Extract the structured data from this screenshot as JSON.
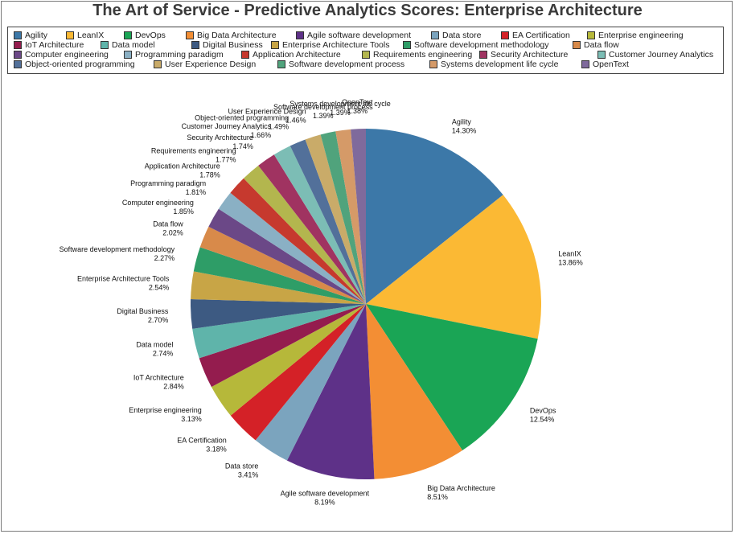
{
  "chart_data": {
    "type": "pie",
    "title": "The Art of Service - Predictive Analytics Scores: Enterprise Architecture",
    "legend_position": "top",
    "slices": [
      {
        "label": "Agility",
        "value": 14.3,
        "value_text": "14.30%",
        "color": "#3c78a8"
      },
      {
        "label": "LeanIX",
        "value": 13.86,
        "value_text": "13.86%",
        "color": "#fbb934"
      },
      {
        "label": "DevOps",
        "value": 12.54,
        "value_text": "12.54%",
        "color": "#1aa555"
      },
      {
        "label": "Big Data Architecture",
        "value": 8.51,
        "value_text": "8.51%",
        "color": "#f38e34"
      },
      {
        "label": "Agile software development",
        "value": 8.19,
        "value_text": "8.19%",
        "color": "#5e3188"
      },
      {
        "label": "Data store",
        "value": 3.41,
        "value_text": "3.41%",
        "color": "#7ba4be"
      },
      {
        "label": "EA Certification",
        "value": 3.18,
        "value_text": "3.18%",
        "color": "#d42127"
      },
      {
        "label": "Enterprise engineering",
        "value": 3.13,
        "value_text": "3.13%",
        "color": "#b6b83a"
      },
      {
        "label": "IoT Architecture",
        "value": 2.84,
        "value_text": "2.84%",
        "color": "#941c4e"
      },
      {
        "label": "Data model",
        "value": 2.74,
        "value_text": "2.74%",
        "color": "#5fb4aa"
      },
      {
        "label": "Digital Business",
        "value": 2.7,
        "value_text": "2.70%",
        "color": "#3d5a82"
      },
      {
        "label": "Enterprise Architecture Tools",
        "value": 2.54,
        "value_text": "2.54%",
        "color": "#c8a546"
      },
      {
        "label": "Software development methodology",
        "value": 2.27,
        "value_text": "2.27%",
        "color": "#2e9d67"
      },
      {
        "label": "Data flow",
        "value": 2.02,
        "value_text": "2.02%",
        "color": "#d88a4a"
      },
      {
        "label": "Computer engineering",
        "value": 1.85,
        "value_text": "1.85%",
        "color": "#6b4887"
      },
      {
        "label": "Programming paradigm",
        "value": 1.81,
        "value_text": "1.81%",
        "color": "#8ab0c4"
      },
      {
        "label": "Application Architecture",
        "value": 1.78,
        "value_text": "1.78%",
        "color": "#c6392e"
      },
      {
        "label": "Requirements engineering",
        "value": 1.77,
        "value_text": "1.77%",
        "color": "#b3b64e"
      },
      {
        "label": "Security Architecture",
        "value": 1.74,
        "value_text": "1.74%",
        "color": "#a03361"
      },
      {
        "label": "Customer Journey Analytics",
        "value": 1.66,
        "value_text": "1.66%",
        "color": "#7cbdb5"
      },
      {
        "label": "Object-oriented programming",
        "value": 1.49,
        "value_text": "1.49%",
        "color": "#52709a"
      },
      {
        "label": "User Experience Design",
        "value": 1.46,
        "value_text": "1.46%",
        "color": "#c9ab69"
      },
      {
        "label": "Software development process",
        "value": 1.39,
        "value_text": "1.39%",
        "color": "#50a37c"
      },
      {
        "label": "Systems development life cycle",
        "value": 1.39,
        "value_text": "1.39%",
        "color": "#d59a68"
      },
      {
        "label": "OpenText",
        "value": 1.38,
        "value_text": "1.38%",
        "color": "#7f6a9c"
      }
    ]
  }
}
